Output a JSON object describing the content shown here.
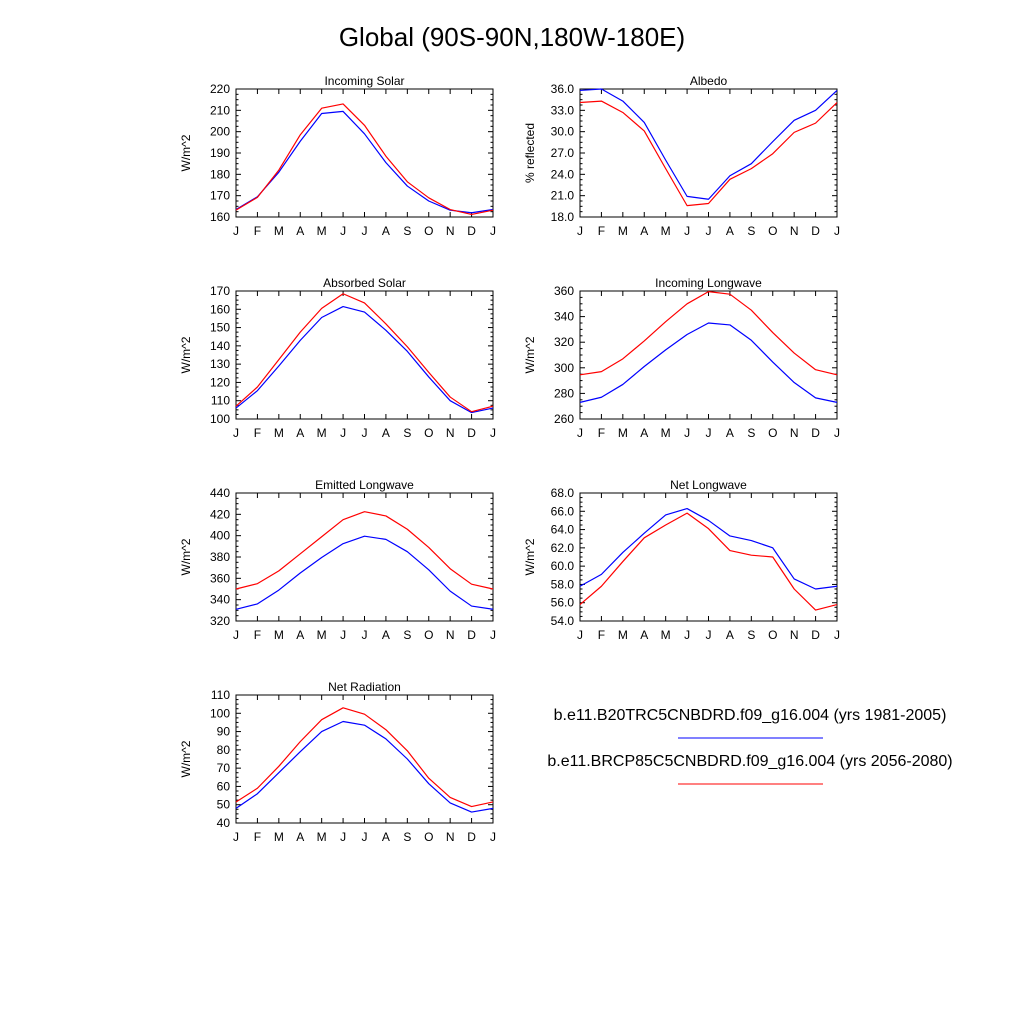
{
  "figure": {
    "title": "Global (90S-90N,180W-180E)"
  },
  "legend": [
    {
      "label": "b.e11.B20TRC5CNBDRD.f09_g16.004 (yrs 1981-2005)",
      "color": "#0000ff"
    },
    {
      "label": "b.e11.BRCP85C5CNBDRD.f09_g16.004 (yrs 2056-2080)",
      "color": "#ff0000"
    }
  ],
  "chart_data": [
    {
      "type": "line",
      "title": "Incoming Solar",
      "ylabel": "W/m^2",
      "ylim": [
        160,
        220
      ],
      "yticks": [
        160,
        170,
        180,
        190,
        200,
        210,
        220
      ],
      "ytick_labels": [
        "160",
        "170",
        "180",
        "190",
        "200",
        "210",
        "220"
      ],
      "categories": [
        "J",
        "F",
        "M",
        "A",
        "M",
        "J",
        "J",
        "A",
        "S",
        "O",
        "N",
        "D",
        "J"
      ],
      "series": [
        {
          "color": "#0000ff",
          "values": [
            163.5,
            169.5,
            181,
            195.5,
            208.5,
            209.5,
            199,
            185.5,
            174.5,
            167.5,
            163.2,
            162,
            163.5
          ]
        },
        {
          "color": "#ff0000",
          "values": [
            163.2,
            169.2,
            182,
            198.5,
            211,
            213,
            203,
            188.5,
            176.5,
            169,
            163.5,
            161.2,
            163.2
          ]
        }
      ]
    },
    {
      "type": "line",
      "title": "Albedo",
      "ylabel": "% reflected",
      "ylim": [
        18,
        36
      ],
      "yticks": [
        18,
        21,
        24,
        27,
        30,
        33,
        36
      ],
      "ytick_labels": [
        "18.0",
        "21.0",
        "24.0",
        "27.0",
        "30.0",
        "33.0",
        "36.0"
      ],
      "categories": [
        "J",
        "F",
        "M",
        "A",
        "M",
        "J",
        "J",
        "A",
        "S",
        "O",
        "N",
        "D",
        "J"
      ],
      "series": [
        {
          "color": "#0000ff",
          "values": [
            35.8,
            36,
            34.3,
            31.3,
            26,
            20.9,
            20.5,
            23.8,
            25.5,
            28.6,
            31.6,
            33,
            35.8
          ]
        },
        {
          "color": "#ff0000",
          "values": [
            34.1,
            34.3,
            32.7,
            30.1,
            24.8,
            19.6,
            19.9,
            23.3,
            24.8,
            26.9,
            29.9,
            31.2,
            34.1
          ]
        }
      ]
    },
    {
      "type": "line",
      "title": "Absorbed Solar",
      "ylabel": "W/m^2",
      "ylim": [
        100,
        170
      ],
      "yticks": [
        100,
        110,
        120,
        130,
        140,
        150,
        160,
        170
      ],
      "ytick_labels": [
        "100",
        "110",
        "120",
        "130",
        "140",
        "150",
        "160",
        "170"
      ],
      "categories": [
        "J",
        "F",
        "M",
        "A",
        "M",
        "J",
        "J",
        "A",
        "S",
        "O",
        "N",
        "D",
        "J"
      ],
      "series": [
        {
          "color": "#0000ff",
          "values": [
            106,
            115.5,
            129,
            143,
            155.5,
            161.5,
            158.5,
            148.5,
            137,
            123,
            110,
            103.5,
            106
          ]
        },
        {
          "color": "#ff0000",
          "values": [
            107,
            117.5,
            132.5,
            147.5,
            160.5,
            168.5,
            163.5,
            152,
            139.5,
            125.5,
            112,
            104,
            107
          ]
        }
      ]
    },
    {
      "type": "line",
      "title": "Incoming Longwave",
      "ylabel": "W/m^2",
      "ylim": [
        260,
        360
      ],
      "yticks": [
        260,
        280,
        300,
        320,
        340,
        360
      ],
      "ytick_labels": [
        "260",
        "280",
        "300",
        "320",
        "340",
        "360"
      ],
      "categories": [
        "J",
        "F",
        "M",
        "A",
        "M",
        "J",
        "J",
        "A",
        "S",
        "O",
        "N",
        "D",
        "J"
      ],
      "series": [
        {
          "color": "#0000ff",
          "values": [
            273,
            277,
            287,
            301,
            314,
            326,
            335,
            333.5,
            321.5,
            304.5,
            288.5,
            276.5,
            273
          ]
        },
        {
          "color": "#ff0000",
          "values": [
            294.5,
            297,
            307,
            321,
            336,
            350,
            359.5,
            357.5,
            345,
            327.5,
            311.5,
            298.5,
            294.5
          ]
        }
      ]
    },
    {
      "type": "line",
      "title": "Emitted Longwave",
      "ylabel": "W/m^2",
      "ylim": [
        320,
        440
      ],
      "yticks": [
        320,
        340,
        360,
        380,
        400,
        420,
        440
      ],
      "ytick_labels": [
        "320",
        "340",
        "360",
        "380",
        "400",
        "420",
        "440"
      ],
      "categories": [
        "J",
        "F",
        "M",
        "A",
        "M",
        "J",
        "J",
        "A",
        "S",
        "O",
        "N",
        "D",
        "J"
      ],
      "series": [
        {
          "color": "#0000ff",
          "values": [
            331,
            336,
            349,
            365,
            379.5,
            392.5,
            399.5,
            396.5,
            385,
            368,
            348,
            334,
            331
          ]
        },
        {
          "color": "#ff0000",
          "values": [
            350,
            355,
            367,
            383,
            399,
            415,
            422.5,
            418.5,
            406,
            389,
            369,
            354.5,
            350
          ]
        }
      ]
    },
    {
      "type": "line",
      "title": "Net Longwave",
      "ylabel": "W/m^2",
      "ylim": [
        54,
        68
      ],
      "yticks": [
        54,
        56,
        58,
        60,
        62,
        64,
        66,
        68
      ],
      "ytick_labels": [
        "54.0",
        "56.0",
        "58.0",
        "60.0",
        "62.0",
        "64.0",
        "66.0",
        "68.0"
      ],
      "categories": [
        "J",
        "F",
        "M",
        "A",
        "M",
        "J",
        "J",
        "A",
        "S",
        "O",
        "N",
        "D",
        "J"
      ],
      "series": [
        {
          "color": "#0000ff",
          "values": [
            57.8,
            59.1,
            61.5,
            63.6,
            65.6,
            66.3,
            65.0,
            63.3,
            62.8,
            62.0,
            58.6,
            57.5,
            57.8
          ]
        },
        {
          "color": "#ff0000",
          "values": [
            55.8,
            57.8,
            60.5,
            63.1,
            64.5,
            65.8,
            64.1,
            61.7,
            61.2,
            61.0,
            57.5,
            55.2,
            55.8
          ]
        }
      ]
    },
    {
      "type": "line",
      "title": "Net Radiation",
      "ylabel": "W/m^2",
      "ylim": [
        40,
        110
      ],
      "yticks": [
        40,
        50,
        60,
        70,
        80,
        90,
        100,
        110
      ],
      "ytick_labels": [
        "40",
        "50",
        "60",
        "70",
        "80",
        "90",
        "100",
        "110"
      ],
      "categories": [
        "J",
        "F",
        "M",
        "A",
        "M",
        "J",
        "J",
        "A",
        "S",
        "O",
        "N",
        "D",
        "J"
      ],
      "series": [
        {
          "color": "#0000ff",
          "values": [
            48,
            56,
            67.5,
            79,
            90,
            95.5,
            93.5,
            86,
            75,
            61.5,
            51,
            46,
            48
          ]
        },
        {
          "color": "#ff0000",
          "values": [
            51.5,
            59,
            71,
            84.5,
            96.5,
            103,
            99.5,
            91,
            79.5,
            64.5,
            54,
            49,
            51.5
          ]
        }
      ]
    }
  ]
}
